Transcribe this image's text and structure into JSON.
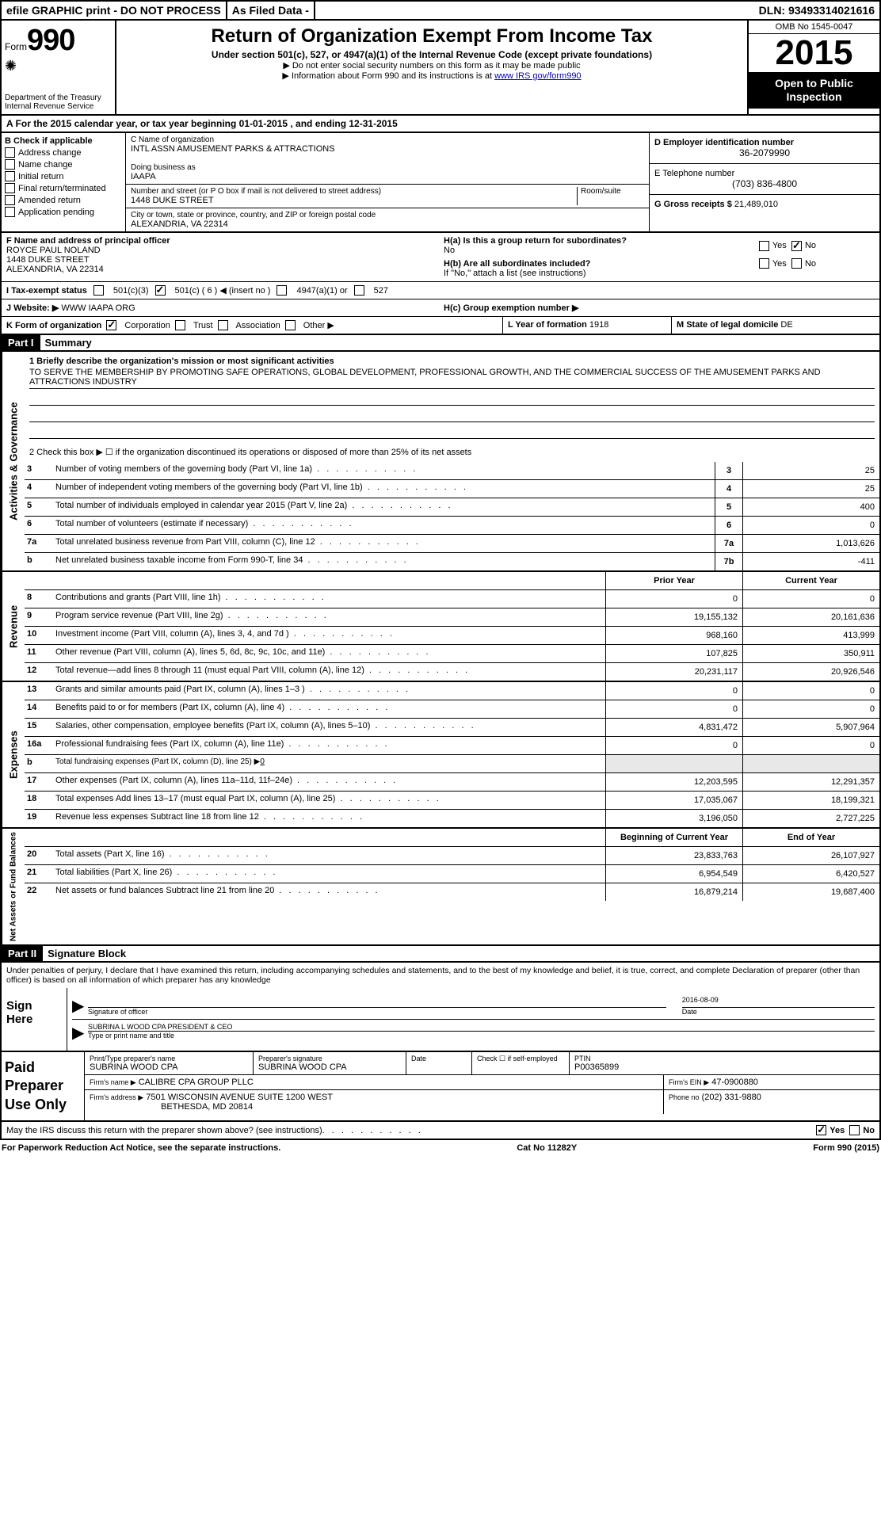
{
  "meta": {
    "dln_label": "DLN:",
    "dln": "93493314021616",
    "efile_text": "efile GRAPHIC print - DO NOT PROCESS",
    "asfiled": "As Filed Data -",
    "omb": "OMB No 1545-0047"
  },
  "form": {
    "label": "Form",
    "number": "990",
    "dept1": "Department of the Treasury",
    "dept2": "Internal Revenue Service",
    "title": "Return of Organization Exempt From Income Tax",
    "subtitle": "Under section 501(c), 527, or 4947(a)(1) of the Internal Revenue Code (except private foundations)",
    "arrow1": "▶ Do not enter social security numbers on this form as it may be made public",
    "arrow2_pre": "▶ Information about Form 990 and its instructions is at ",
    "arrow2_link": "www IRS gov/form990",
    "year": "2015",
    "inspection1": "Open to Public",
    "inspection2": "Inspection"
  },
  "sectionA": {
    "text": "A  For the 2015 calendar year, or tax year beginning 01-01-2015    , and ending 12-31-2015"
  },
  "colB": {
    "header": "B Check if applicable",
    "items": [
      "Address change",
      "Name change",
      "Initial return",
      "Final return/terminated",
      "Amended return",
      "Application pending"
    ]
  },
  "colC": {
    "name_label": "C Name of organization",
    "name": "INTL ASSN AMUSEMENT PARKS & ATTRACTIONS",
    "dba_label": "Doing business as",
    "dba": "IAAPA",
    "addr_label": "Number and street (or P O  box if mail is not delivered to street address)",
    "room_label": "Room/suite",
    "addr": "1448 DUKE STREET",
    "city_label": "City or town, state or province, country, and ZIP or foreign postal code",
    "city": "ALEXANDRIA, VA  22314"
  },
  "colD": {
    "ein_label": "D Employer identification number",
    "ein": "36-2079990",
    "phone_label": "E Telephone number",
    "phone": "(703) 836-4800",
    "gross_label": "G Gross receipts $",
    "gross": "21,489,010"
  },
  "sectionF": {
    "label": "F Name and address of principal officer",
    "name": "ROYCE PAUL NOLAND",
    "addr1": "1448 DUKE STREET",
    "addr2": "ALEXANDRIA, VA  22314"
  },
  "sectionH": {
    "ha_label": "H(a)  Is this a group return for subordinates?",
    "ha_answer": "No",
    "hb_label": "H(b)  Are all subordinates included?",
    "hb_note": "If \"No,\" attach a list  (see instructions)",
    "hc_label": "H(c)   Group exemption number ▶",
    "yes": "Yes",
    "no": "No"
  },
  "sectionI": {
    "label": "I  Tax-exempt status",
    "opt1": "501(c)(3)",
    "opt2": "501(c) ( 6 ) ◀ (insert no )",
    "opt3": "4947(a)(1) or",
    "opt4": "527"
  },
  "sectionJ": {
    "label": "J  Website: ▶",
    "value": "WWW IAAPA ORG"
  },
  "sectionK": {
    "label": "K Form of organization",
    "opts": [
      "Corporation",
      "Trust",
      "Association",
      "Other ▶"
    ]
  },
  "sectionL": {
    "l_label": "L Year of formation",
    "l_val": "1918",
    "m_label": "M State of legal domicile",
    "m_val": "DE"
  },
  "partI": {
    "header": "Part I",
    "title": "Summary",
    "line1_label": "1 Briefly describe the organization's mission or most significant activities",
    "mission": "TO SERVE THE MEMBERSHIP BY PROMOTING SAFE OPERATIONS, GLOBAL DEVELOPMENT, PROFESSIONAL GROWTH, AND THE COMMERCIAL SUCCESS OF THE AMUSEMENT PARKS AND ATTRACTIONS INDUSTRY",
    "line2": "2  Check this box ▶ ☐ if the organization discontinued its operations or disposed of more than 25% of its net assets"
  },
  "governance": {
    "tab": "Activities & Governance",
    "rows": [
      {
        "n": "3",
        "d": "Number of voting members of the governing body (Part VI, line 1a)",
        "num": "3",
        "v": "25"
      },
      {
        "n": "4",
        "d": "Number of independent voting members of the governing body (Part VI, line 1b)",
        "num": "4",
        "v": "25"
      },
      {
        "n": "5",
        "d": "Total number of individuals employed in calendar year 2015 (Part V, line 2a)",
        "num": "5",
        "v": "400"
      },
      {
        "n": "6",
        "d": "Total number of volunteers (estimate if necessary)",
        "num": "6",
        "v": "0"
      },
      {
        "n": "7a",
        "d": "Total unrelated business revenue from Part VIII, column (C), line 12",
        "num": "7a",
        "v": "1,013,626"
      },
      {
        "n": "b",
        "d": "Net unrelated business taxable income from Form 990-T, line 34",
        "num": "7b",
        "v": "-411"
      }
    ]
  },
  "revenue": {
    "tab": "Revenue",
    "header_prior": "Prior Year",
    "header_current": "Current Year",
    "rows": [
      {
        "n": "8",
        "d": "Contributions and grants (Part VIII, line 1h)",
        "p": "0",
        "c": "0"
      },
      {
        "n": "9",
        "d": "Program service revenue (Part VIII, line 2g)",
        "p": "19,155,132",
        "c": "20,161,636"
      },
      {
        "n": "10",
        "d": "Investment income (Part VIII, column (A), lines 3, 4, and 7d )",
        "p": "968,160",
        "c": "413,999"
      },
      {
        "n": "11",
        "d": "Other revenue (Part VIII, column (A), lines 5, 6d, 8c, 9c, 10c, and 11e)",
        "p": "107,825",
        "c": "350,911"
      },
      {
        "n": "12",
        "d": "Total revenue—add lines 8 through 11 (must equal Part VIII, column (A), line 12)",
        "p": "20,231,117",
        "c": "20,926,546"
      }
    ]
  },
  "expenses": {
    "tab": "Expenses",
    "rows": [
      {
        "n": "13",
        "d": "Grants and similar amounts paid (Part IX, column (A), lines 1–3 )",
        "p": "0",
        "c": "0"
      },
      {
        "n": "14",
        "d": "Benefits paid to or for members (Part IX, column (A), line 4)",
        "p": "0",
        "c": "0"
      },
      {
        "n": "15",
        "d": "Salaries, other compensation, employee benefits (Part IX, column (A), lines 5–10)",
        "p": "4,831,472",
        "c": "5,907,964"
      },
      {
        "n": "16a",
        "d": "Professional fundraising fees (Part IX, column (A), line 11e)",
        "p": "0",
        "c": "0"
      },
      {
        "n": "b",
        "d": "Total fundraising expenses (Part IX, column (D), line 25) ▶",
        "p": "",
        "c": "",
        "special": "0"
      },
      {
        "n": "17",
        "d": "Other expenses (Part IX, column (A), lines 11a–11d, 11f–24e)",
        "p": "12,203,595",
        "c": "12,291,357"
      },
      {
        "n": "18",
        "d": "Total expenses  Add lines 13–17 (must equal Part IX, column (A), line 25)",
        "p": "17,035,067",
        "c": "18,199,321"
      },
      {
        "n": "19",
        "d": "Revenue less expenses  Subtract line 18 from line 12",
        "p": "3,196,050",
        "c": "2,727,225"
      }
    ]
  },
  "netassets": {
    "tab": "Net Assets or Fund Balances",
    "header_begin": "Beginning of Current Year",
    "header_end": "End of Year",
    "rows": [
      {
        "n": "20",
        "d": "Total assets (Part X, line 16)",
        "p": "23,833,763",
        "c": "26,107,927"
      },
      {
        "n": "21",
        "d": "Total liabilities (Part X, line 26)",
        "p": "6,954,549",
        "c": "6,420,527"
      },
      {
        "n": "22",
        "d": "Net assets or fund balances  Subtract line 21 from line 20",
        "p": "16,879,214",
        "c": "19,687,400"
      }
    ]
  },
  "partII": {
    "header": "Part II",
    "title": "Signature Block",
    "perjury": "Under penalties of perjury, I declare that I have examined this return, including accompanying schedules and statements, and to the best of my knowledge and belief, it is true, correct, and complete  Declaration of preparer (other than officer) is based on all information of which preparer has any knowledge"
  },
  "sign": {
    "left": "Sign Here",
    "sig_label": "Signature of officer",
    "date": "2016-08-09",
    "date_label": "Date",
    "name": "SUBRINA L WOOD CPA PRESIDENT & CEO",
    "name_label": "Type or print name and title"
  },
  "preparer": {
    "left": "Paid Preparer Use Only",
    "name_label": "Print/Type preparer's name",
    "name": "SUBRINA WOOD CPA",
    "sig_label": "Preparer's signature",
    "sig": "SUBRINA WOOD CPA",
    "date_label": "Date",
    "check_label": "Check ☐ if self-employed",
    "ptin_label": "PTIN",
    "ptin": "P00365899",
    "firm_name_label": "Firm's name     ▶",
    "firm_name": "CALIBRE CPA GROUP PLLC",
    "firm_ein_label": "Firm's EIN ▶",
    "firm_ein": "47-0900880",
    "firm_addr_label": "Firm's address ▶",
    "firm_addr": "7501 WISCONSIN AVENUE SUITE 1200 WEST",
    "firm_city": "BETHESDA, MD  20814",
    "phone_label": "Phone no",
    "phone": "(202) 331-9880"
  },
  "discuss": {
    "text": "May the IRS discuss this return with the preparer shown above? (see instructions)",
    "yes": "Yes",
    "no": "No"
  },
  "footer": {
    "left": "For Paperwork Reduction Act Notice, see the separate instructions.",
    "center": "Cat No 11282Y",
    "right_form": "Form",
    "right_num": "990",
    "right_year": "(2015)"
  }
}
